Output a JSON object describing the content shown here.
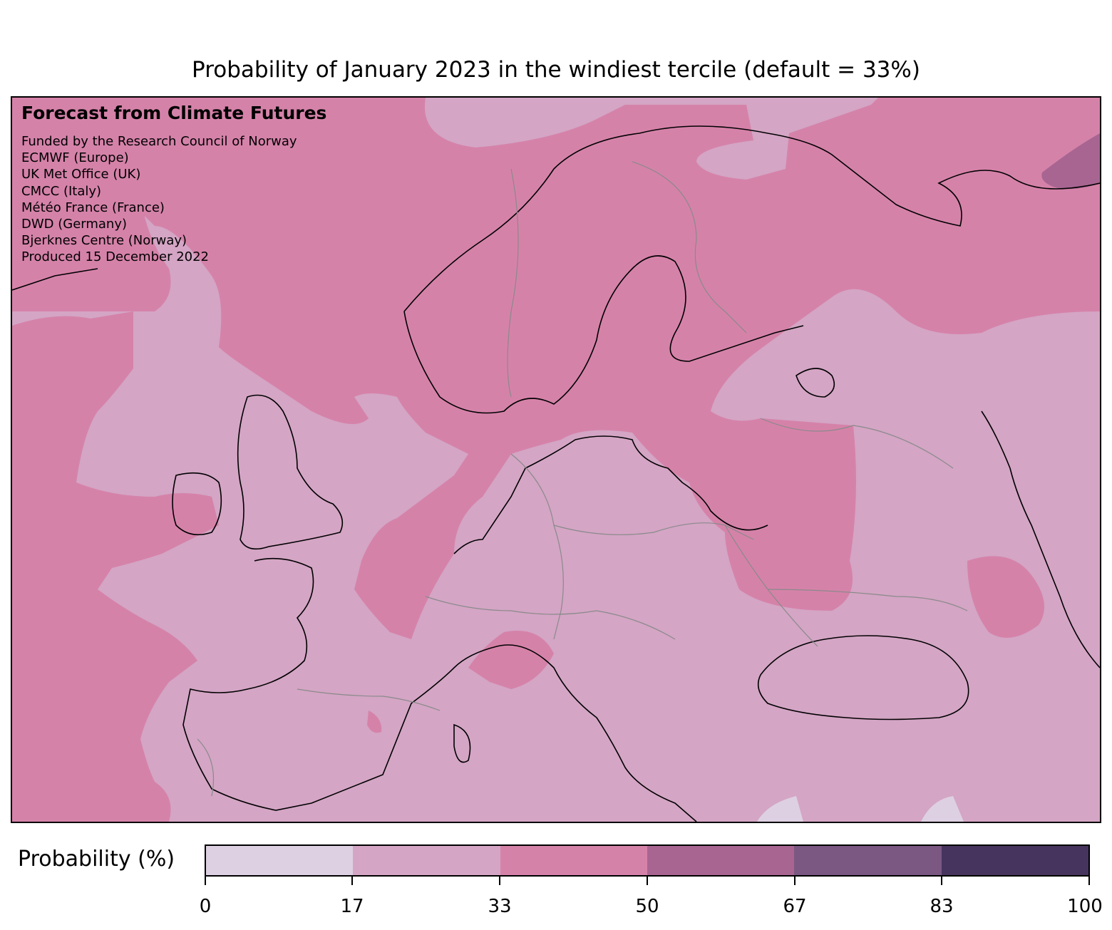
{
  "title": "Probability of January 2023 in the windiest tercile (default = 33%)",
  "credits": {
    "heading": "Forecast from Climate Futures",
    "lines": [
      "Funded by the Research Council of Norway",
      "ECMWF (Europe)",
      "UK Met Office (UK)",
      "CMCC (Italy)",
      "Météo France (France)",
      "DWD (Germany)",
      "Bjerknes Centre (Norway)",
      "Produced 15 December 2022"
    ]
  },
  "legend": {
    "label": "Probability (%)",
    "ticks": [
      "0",
      "17",
      "33",
      "50",
      "67",
      "83",
      "100"
    ],
    "colors": [
      "#ddd0e2",
      "#d4a5c5",
      "#d582a9",
      "#a86592",
      "#7a5882",
      "#46345e"
    ]
  }
}
